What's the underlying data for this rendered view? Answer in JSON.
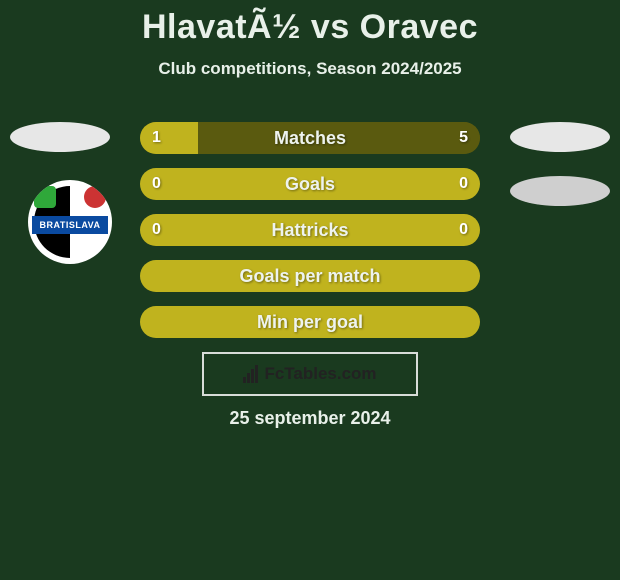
{
  "header": {
    "title": "HlavatÃ½ vs Oravec",
    "subtitle": "Club competitions, Season 2024/2025"
  },
  "colors": {
    "background": "#1a3a1f",
    "bar_base": "#5a5a0f",
    "bar_fill": "#c0b31e",
    "text": "#e8f0e9",
    "footer_border": "#d8dcd8",
    "footer_text": "#222222"
  },
  "club_badge": {
    "banner_text": "BRATISLAVA"
  },
  "bars": [
    {
      "label": "Matches",
      "left_val": "1",
      "right_val": "5",
      "left_pct": 17,
      "right_pct": 83,
      "style": "split"
    },
    {
      "label": "Goals",
      "left_val": "0",
      "right_val": "0",
      "left_pct": 0,
      "right_pct": 0,
      "style": "full-light"
    },
    {
      "label": "Hattricks",
      "left_val": "0",
      "right_val": "0",
      "left_pct": 0,
      "right_pct": 0,
      "style": "full-light"
    },
    {
      "label": "Goals per match",
      "left_val": "",
      "right_val": "",
      "left_pct": 0,
      "right_pct": 0,
      "style": "full-light"
    },
    {
      "label": "Min per goal",
      "left_val": "",
      "right_val": "",
      "left_pct": 0,
      "right_pct": 0,
      "style": "full-light"
    }
  ],
  "footer": {
    "brand": "FcTables.com",
    "date": "25 september 2024"
  }
}
